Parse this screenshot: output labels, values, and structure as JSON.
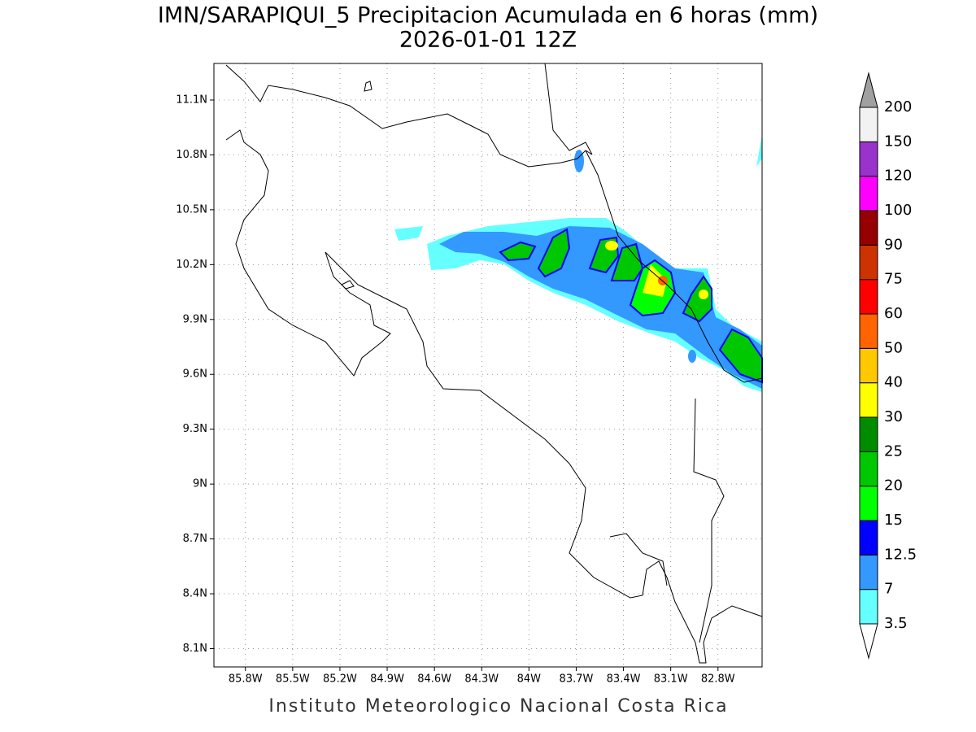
{
  "title": "IMN/SARAPIQUI_5 Precipitacion Acumulada en 6 horas (mm)",
  "subtitle": "2026-01-01 12Z",
  "footer": "Instituto Meteorologico Nacional Costa Rica",
  "map": {
    "lonlim": [
      -86.0,
      -82.52
    ],
    "latlim": [
      8.0,
      11.3
    ],
    "grid": true,
    "lonticks": [
      {
        "value": -85.8,
        "label": "85.8W"
      },
      {
        "value": -85.5,
        "label": "85.5W"
      },
      {
        "value": -85.2,
        "label": "85.2W"
      },
      {
        "value": -84.9,
        "label": "84.9W"
      },
      {
        "value": -84.6,
        "label": "84.6W"
      },
      {
        "value": -84.3,
        "label": "84.3W"
      },
      {
        "value": -84.0,
        "label": "84W"
      },
      {
        "value": -83.7,
        "label": "83.7W"
      },
      {
        "value": -83.4,
        "label": "83.4W"
      },
      {
        "value": -83.1,
        "label": "83.1W"
      },
      {
        "value": -82.8,
        "label": "82.8W"
      }
    ],
    "latticks": [
      {
        "value": 11.1,
        "label": "11.1N"
      },
      {
        "value": 10.8,
        "label": "10.8N"
      },
      {
        "value": 10.5,
        "label": "10.5N"
      },
      {
        "value": 10.2,
        "label": "10.2N"
      },
      {
        "value": 9.9,
        "label": "9.9N"
      },
      {
        "value": 9.6,
        "label": "9.6N"
      },
      {
        "value": 9.3,
        "label": "9.3N"
      },
      {
        "value": 9.0,
        "label": "9N"
      },
      {
        "value": 8.7,
        "label": "8.7N"
      },
      {
        "value": 8.4,
        "label": "8.4N"
      },
      {
        "value": 8.1,
        "label": "8.1N"
      }
    ]
  },
  "colorbar": {
    "levels": [
      3.5,
      7,
      12.5,
      15,
      20,
      25,
      30,
      40,
      50,
      60,
      75,
      90,
      100,
      120,
      150,
      200
    ],
    "colors": [
      "#66ffff",
      "#3399ff",
      "#0000ff",
      "#00ff00",
      "#00c800",
      "#008c00",
      "#ffff00",
      "#ffc800",
      "#ff6400",
      "#ff0000",
      "#cc3300",
      "#960000",
      "#ff00ff",
      "#9933cc",
      "#f2f2f2"
    ],
    "under_color": "#ffffff",
    "over_color": "#a0a0a0"
  }
}
